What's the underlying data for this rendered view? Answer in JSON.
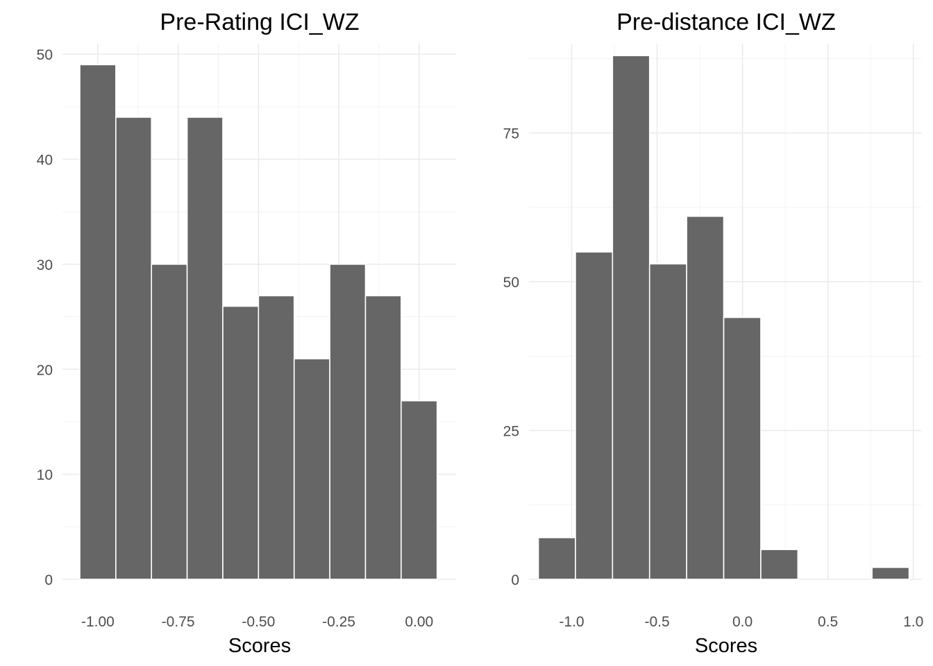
{
  "chart_data": [
    {
      "type": "bar",
      "title": "Pre-Rating ICI_WZ",
      "xlabel": "Scores",
      "ylabel": "",
      "grid": true,
      "xlim": [
        -1.11,
        0.115
      ],
      "ylim": [
        0,
        51
      ],
      "x_ticks": [
        -1.0,
        -0.75,
        -0.5,
        -0.25,
        0.0
      ],
      "x_tick_labels": [
        "-1.00",
        "-0.75",
        "-0.50",
        "-0.25",
        "0.00"
      ],
      "y_ticks": [
        0,
        10,
        20,
        30,
        40,
        50
      ],
      "y_tick_labels": [
        "0",
        "10",
        "20",
        "30",
        "40",
        "50"
      ],
      "bins": [
        {
          "x0": -1.056,
          "x1": -0.944,
          "count": 49
        },
        {
          "x0": -0.944,
          "x1": -0.833,
          "count": 44
        },
        {
          "x0": -0.833,
          "x1": -0.722,
          "count": 30
        },
        {
          "x0": -0.722,
          "x1": -0.611,
          "count": 44
        },
        {
          "x0": -0.611,
          "x1": -0.5,
          "count": 26
        },
        {
          "x0": -0.5,
          "x1": -0.389,
          "count": 27
        },
        {
          "x0": -0.389,
          "x1": -0.278,
          "count": 21
        },
        {
          "x0": -0.278,
          "x1": -0.167,
          "count": 30
        },
        {
          "x0": -0.167,
          "x1": -0.056,
          "count": 27
        },
        {
          "x0": -0.056,
          "x1": 0.056,
          "count": 17
        }
      ]
    },
    {
      "type": "bar",
      "title": "Pre-distance ICI_WZ",
      "xlabel": "Scores",
      "ylabel": "",
      "grid": true,
      "xlim": [
        -1.25,
        1.05
      ],
      "ylim": [
        0,
        90
      ],
      "x_ticks": [
        -1.0,
        -0.5,
        0.0,
        0.5,
        1.0
      ],
      "x_tick_labels": [
        "-1.0",
        "-0.5",
        "0.0",
        "0.5",
        "1.0"
      ],
      "y_ticks": [
        0,
        25,
        50,
        75
      ],
      "y_tick_labels": [
        "0",
        "25",
        "50",
        "75"
      ],
      "bins": [
        {
          "x0": -1.195,
          "x1": -0.978,
          "count": 7
        },
        {
          "x0": -0.978,
          "x1": -0.761,
          "count": 55
        },
        {
          "x0": -0.761,
          "x1": -0.544,
          "count": 88
        },
        {
          "x0": -0.544,
          "x1": -0.327,
          "count": 53
        },
        {
          "x0": -0.327,
          "x1": -0.11,
          "count": 61
        },
        {
          "x0": -0.11,
          "x1": 0.107,
          "count": 44
        },
        {
          "x0": 0.107,
          "x1": 0.324,
          "count": 5
        },
        {
          "x0": 0.324,
          "x1": 0.541,
          "count": 0
        },
        {
          "x0": 0.541,
          "x1": 0.758,
          "count": 0
        },
        {
          "x0": 0.758,
          "x1": 0.975,
          "count": 2
        }
      ]
    }
  ]
}
